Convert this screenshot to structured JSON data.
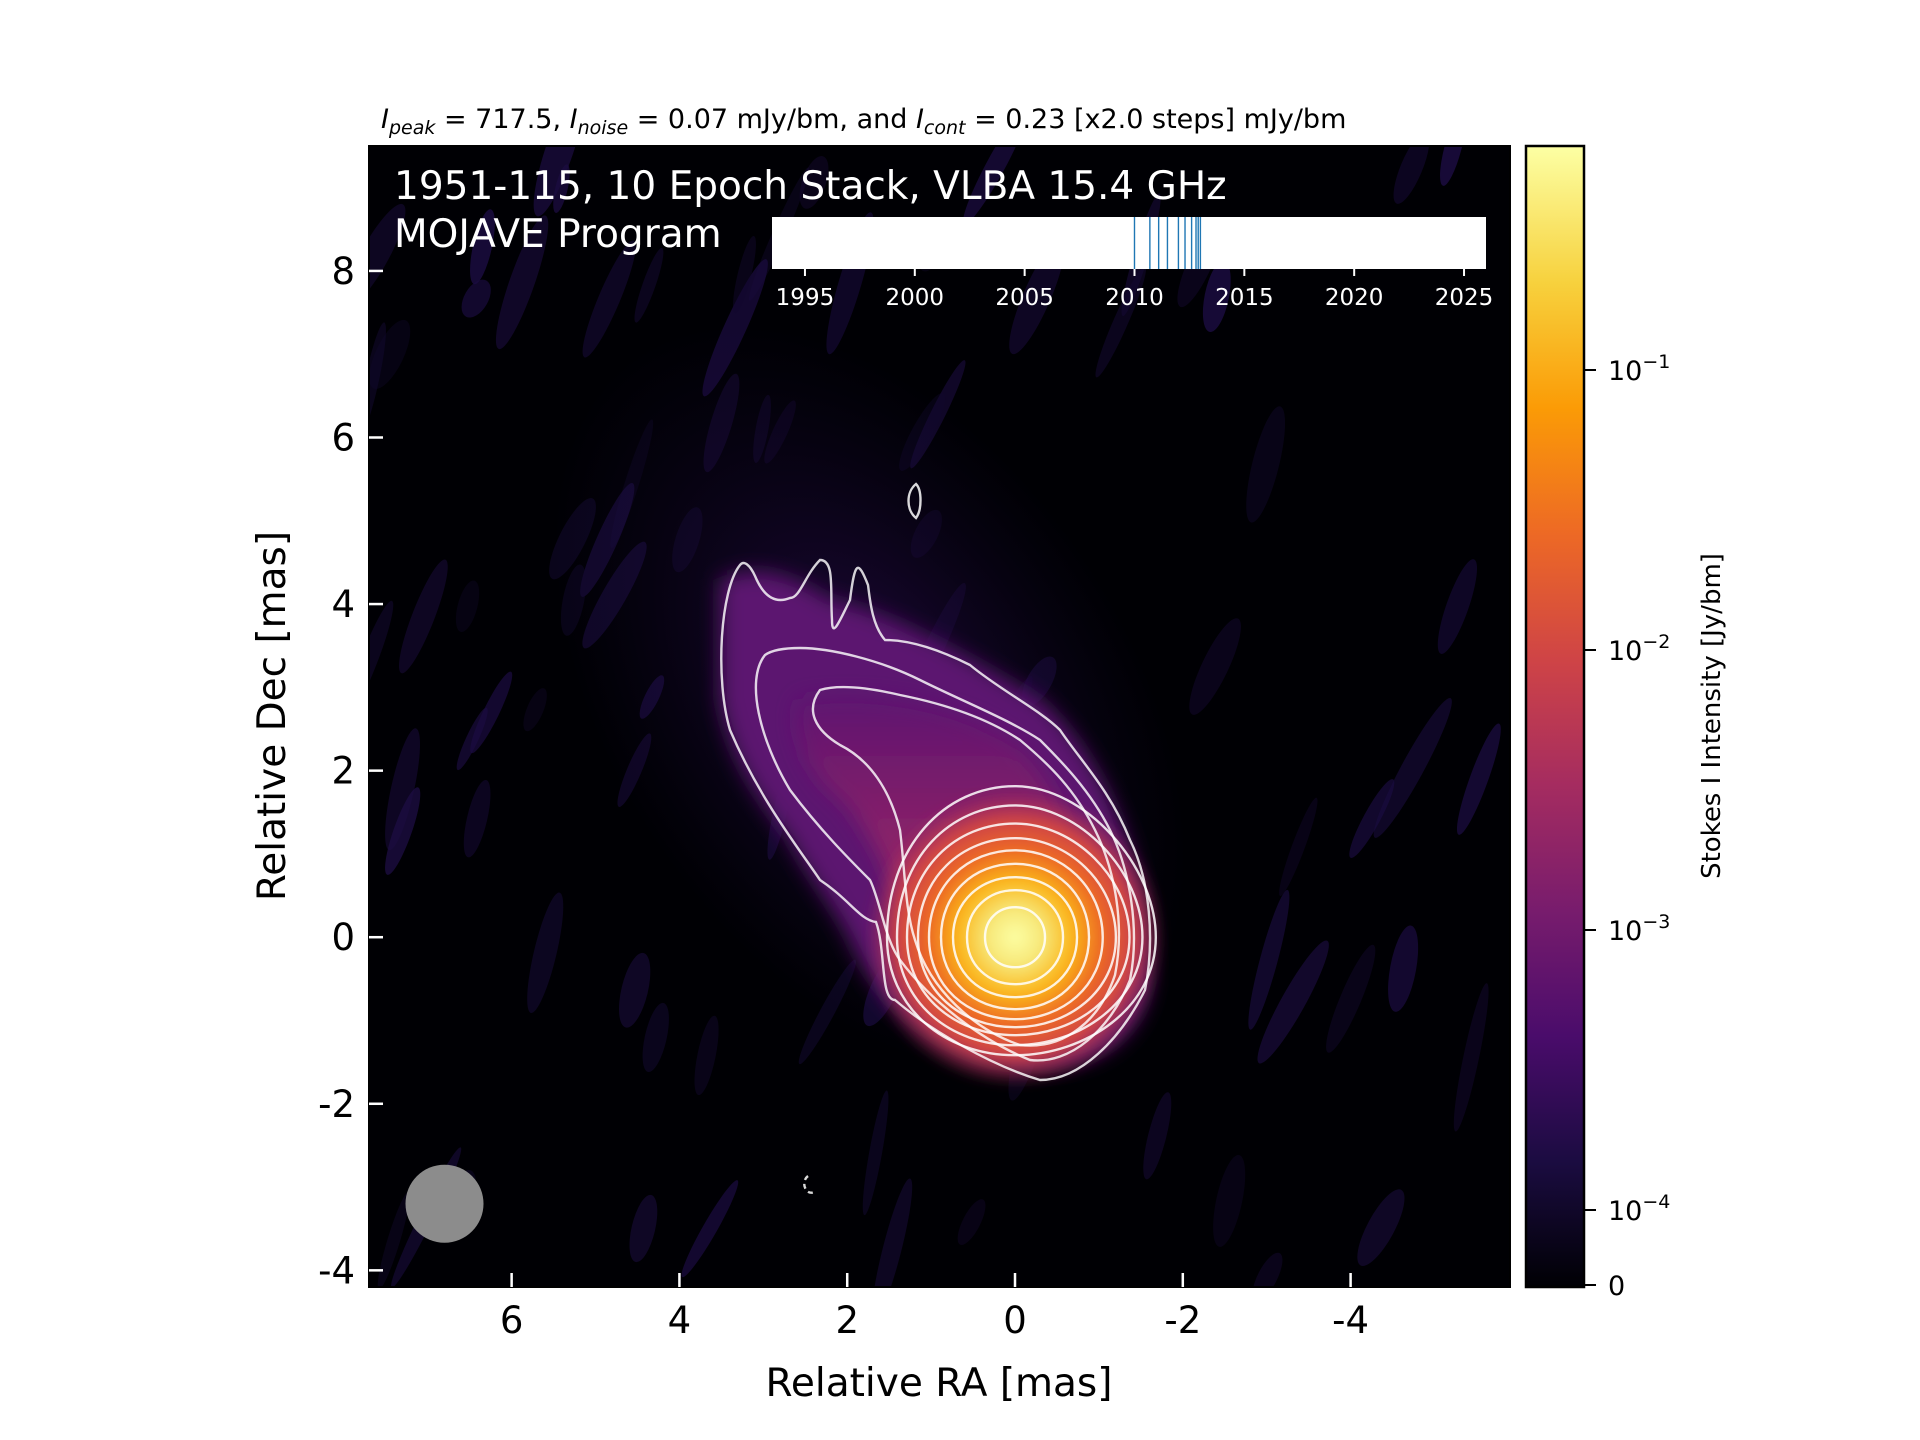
{
  "chart_data": {
    "type": "heatmap",
    "header": {
      "prefix": "I",
      "peak_sub": "peak",
      "peak_val": " = 717.5, ",
      "noise_sub": "noise",
      "noise_val": " = 0.07 mJy/bm, and ",
      "cont_sub": "cont",
      "cont_val": " = 0.23 [x2.0 steps] mJy/bm"
    },
    "title_line1": "1951-115, 10 Epoch Stack, VLBA 15.4 GHz",
    "title_line2": "MOJAVE Program",
    "xlabel": "Relative RA [mas]",
    "ylabel": "Relative Dec [mas]",
    "xlim": [
      7.7,
      -5.9
    ],
    "ylim": [
      -4.2,
      9.5
    ],
    "x_ticks": [
      {
        "value": 6,
        "label": "6"
      },
      {
        "value": 4,
        "label": "4"
      },
      {
        "value": 2,
        "label": "2"
      },
      {
        "value": 0,
        "label": "0"
      },
      {
        "value": -2,
        "label": "-2"
      },
      {
        "value": -4,
        "label": "-4"
      }
    ],
    "y_ticks": [
      {
        "value": 8,
        "label": "8"
      },
      {
        "value": 6,
        "label": "6"
      },
      {
        "value": 4,
        "label": "4"
      },
      {
        "value": 2,
        "label": "2"
      },
      {
        "value": 0,
        "label": "0"
      },
      {
        "value": -2,
        "label": "-2"
      },
      {
        "value": -4,
        "label": "-4"
      }
    ],
    "epoch_timeline": {
      "xlim": [
        1993.5,
        2026.0
      ],
      "ticks": [
        {
          "value": 1995,
          "label": "1995"
        },
        {
          "value": 2000,
          "label": "2000"
        },
        {
          "value": 2005,
          "label": "2005"
        },
        {
          "value": 2010,
          "label": "2010"
        },
        {
          "value": 2015,
          "label": "2015"
        },
        {
          "value": 2020,
          "label": "2020"
        },
        {
          "value": 2025,
          "label": "2025"
        }
      ],
      "epochs": [
        2010.0,
        2010.7,
        2011.1,
        2011.5,
        2012.0,
        2012.3,
        2012.6,
        2012.8,
        2012.9,
        2013.0
      ]
    },
    "colorbar": {
      "label": "Stokes I Intensity [Jy/bm]",
      "scale": "log",
      "colormap": "inferno",
      "ticks": [
        {
          "value": 0.1,
          "base": "10",
          "exp": "−1"
        },
        {
          "value": 0.01,
          "base": "10",
          "exp": "−2"
        },
        {
          "value": 0.001,
          "base": "10",
          "exp": "−3"
        },
        {
          "value": 0.0001,
          "base": "10",
          "exp": "−4"
        },
        {
          "value": 0,
          "base": "0",
          "exp": ""
        }
      ]
    },
    "beam": {
      "ra": 6.8,
      "dec": -3.2
    },
    "core": {
      "ra": 0.0,
      "dec": 0.0,
      "peak_jy_per_beam": 0.7175
    },
    "colors": {
      "background": "#000004",
      "contour": "#ffffff",
      "beam": "#8c8c8c",
      "epoch_line": "#1f77b4",
      "colormap_stops": [
        "#000004",
        "#1b0c41",
        "#4a0c6b",
        "#781c6d",
        "#a52c60",
        "#cf4446",
        "#ed6925",
        "#fb9b06",
        "#f7d13d",
        "#fcffa4"
      ]
    }
  }
}
